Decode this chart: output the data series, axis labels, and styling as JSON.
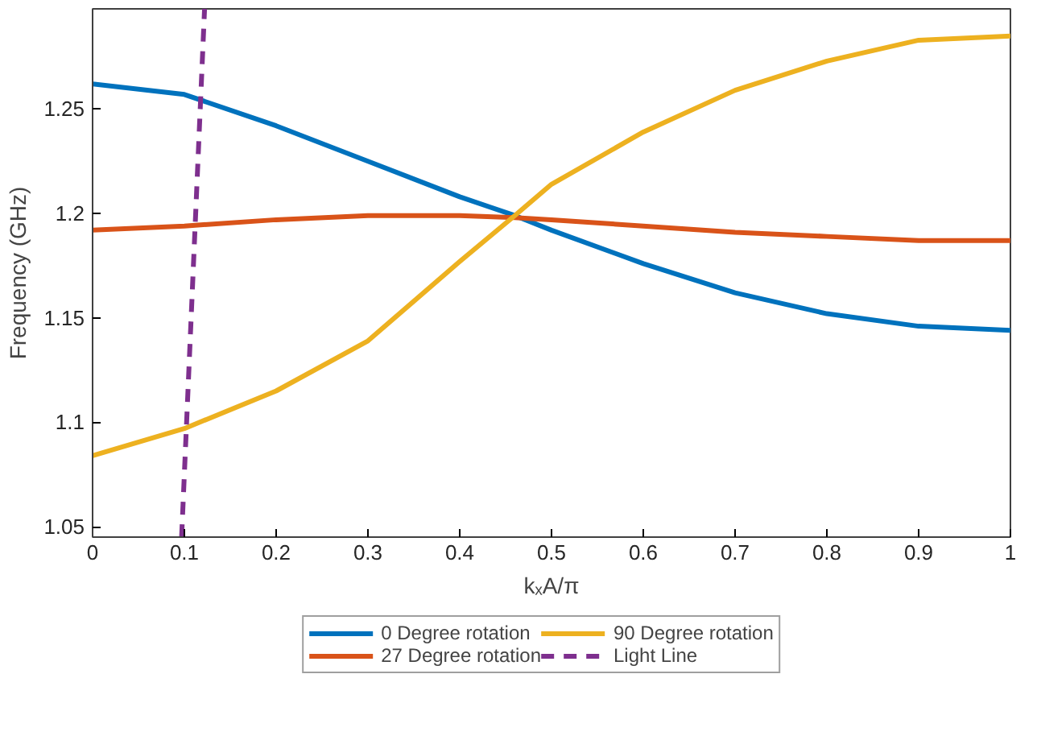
{
  "chart_data": {
    "type": "line",
    "xlabel": "kₓA/π",
    "ylabel": "Frequency (GHz)",
    "xlim": [
      0,
      1
    ],
    "ylim": [
      1.045,
      1.298
    ],
    "xticks": [
      0,
      0.1,
      0.2,
      0.3,
      0.4,
      0.5,
      0.6,
      0.7,
      0.8,
      0.9,
      1
    ],
    "yticks": [
      1.05,
      1.1,
      1.15,
      1.2,
      1.25
    ],
    "grid": false,
    "legend": "bottom",
    "marker": "none",
    "x": [
      0,
      0.1,
      0.2,
      0.3,
      0.4,
      0.46,
      0.5,
      0.6,
      0.7,
      0.8,
      0.9,
      1
    ],
    "series": [
      {
        "name": "0 Degree rotation",
        "color": "#0072bd",
        "line_style": "solid",
        "values": [
          1.262,
          1.257,
          1.242,
          1.225,
          1.208,
          1.199,
          1.192,
          1.176,
          1.162,
          1.152,
          1.146,
          1.144
        ]
      },
      {
        "name": "27 Degree rotation",
        "color": "#d95319",
        "line_style": "solid",
        "values": [
          1.192,
          1.194,
          1.197,
          1.199,
          1.199,
          1.198,
          1.197,
          1.194,
          1.191,
          1.189,
          1.187,
          1.187
        ]
      },
      {
        "name": "90 Degree rotation",
        "color": "#edb120",
        "line_style": "solid",
        "values": [
          1.084,
          1.097,
          1.115,
          1.139,
          1.177,
          1.199,
          1.214,
          1.239,
          1.259,
          1.273,
          1.283,
          1.285
        ]
      },
      {
        "name": "Light Line",
        "color": "#7e2f8e",
        "line_style": "dashed",
        "x": [
          0.097,
          0.122
        ],
        "values": [
          1.045,
          1.298
        ]
      }
    ]
  }
}
